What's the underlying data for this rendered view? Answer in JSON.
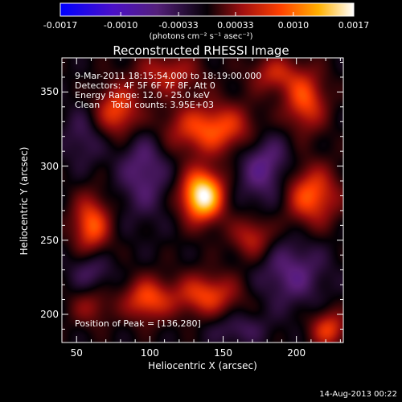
{
  "chart_data": {
    "type": "heatmap",
    "title": "Reconstructed RHESSI Image",
    "xlabel": "Heliocentric X (arcsec)",
    "ylabel": "Heliocentric Y (arcsec)",
    "xlim": [
      40,
      232
    ],
    "ylim": [
      181,
      373
    ],
    "x_ticks": [
      50,
      100,
      150,
      200
    ],
    "y_ticks": [
      200,
      250,
      300,
      350
    ],
    "colorbar": {
      "colormap": "blue-purple-black-red-orange-yellow-white",
      "range": [
        -0.0017,
        0.0017
      ],
      "tick_labels": [
        "-0.0017",
        "-0.0010",
        "-0.00033",
        "0.00033",
        "0.0010",
        "0.0017"
      ],
      "units_label": "(photons cm⁻² s⁻¹ asec⁻²)"
    },
    "annotations": [
      "9-Mar-2011 18:15:54.000 to 18:19:00.000",
      "Detectors: 4F 5F 6F 7F 8F, Att 0",
      "Energy Range: 12.0 - 25.0 keV",
      "Clean    Total counts: 3.95E+03",
      "Position of Peak = [136,280]"
    ],
    "peak": {
      "x": 136,
      "y": 280
    },
    "sources": [
      {
        "x": 136,
        "y": 280,
        "sx": 10,
        "sy": 12,
        "amp": 1.0
      },
      {
        "x": 143,
        "y": 325,
        "sx": 24,
        "sy": 12,
        "amp": 0.55
      },
      {
        "x": 78,
        "y": 337,
        "sx": 11,
        "sy": 12,
        "amp": 0.5
      },
      {
        "x": 206,
        "y": 344,
        "sx": 10,
        "sy": 14,
        "amp": 0.5
      },
      {
        "x": 60,
        "y": 260,
        "sx": 9,
        "sy": 14,
        "amp": 0.55
      },
      {
        "x": 210,
        "y": 280,
        "sx": 13,
        "sy": 14,
        "amp": 0.55
      },
      {
        "x": 98,
        "y": 210,
        "sx": 11,
        "sy": 10,
        "amp": 0.5
      },
      {
        "x": 138,
        "y": 213,
        "sx": 16,
        "sy": 10,
        "amp": 0.48
      },
      {
        "x": 112,
        "y": 362,
        "sx": 16,
        "sy": 10,
        "amp": 0.35
      },
      {
        "x": 170,
        "y": 252,
        "sx": 10,
        "sy": 10,
        "amp": 0.38
      },
      {
        "x": 222,
        "y": 190,
        "sx": 9,
        "sy": 9,
        "amp": 0.45
      },
      {
        "x": 60,
        "y": 205,
        "sx": 10,
        "sy": 9,
        "amp": 0.25
      },
      {
        "x": 185,
        "y": 362,
        "sx": 12,
        "sy": 9,
        "amp": 0.35
      },
      {
        "x": 96,
        "y": 298,
        "sx": 12,
        "sy": 22,
        "amp": -0.3
      },
      {
        "x": 178,
        "y": 302,
        "sx": 13,
        "sy": 20,
        "amp": -0.35
      },
      {
        "x": 197,
        "y": 228,
        "sx": 16,
        "sy": 16,
        "amp": -0.3
      },
      {
        "x": 60,
        "y": 230,
        "sx": 10,
        "sy": 10,
        "amp": -0.25
      },
      {
        "x": 160,
        "y": 190,
        "sx": 14,
        "sy": 8,
        "amp": -0.2
      },
      {
        "x": 55,
        "y": 320,
        "sx": 10,
        "sy": 14,
        "amp": -0.2
      }
    ]
  },
  "footer": {
    "date": "14-Aug-2013 00:22"
  }
}
